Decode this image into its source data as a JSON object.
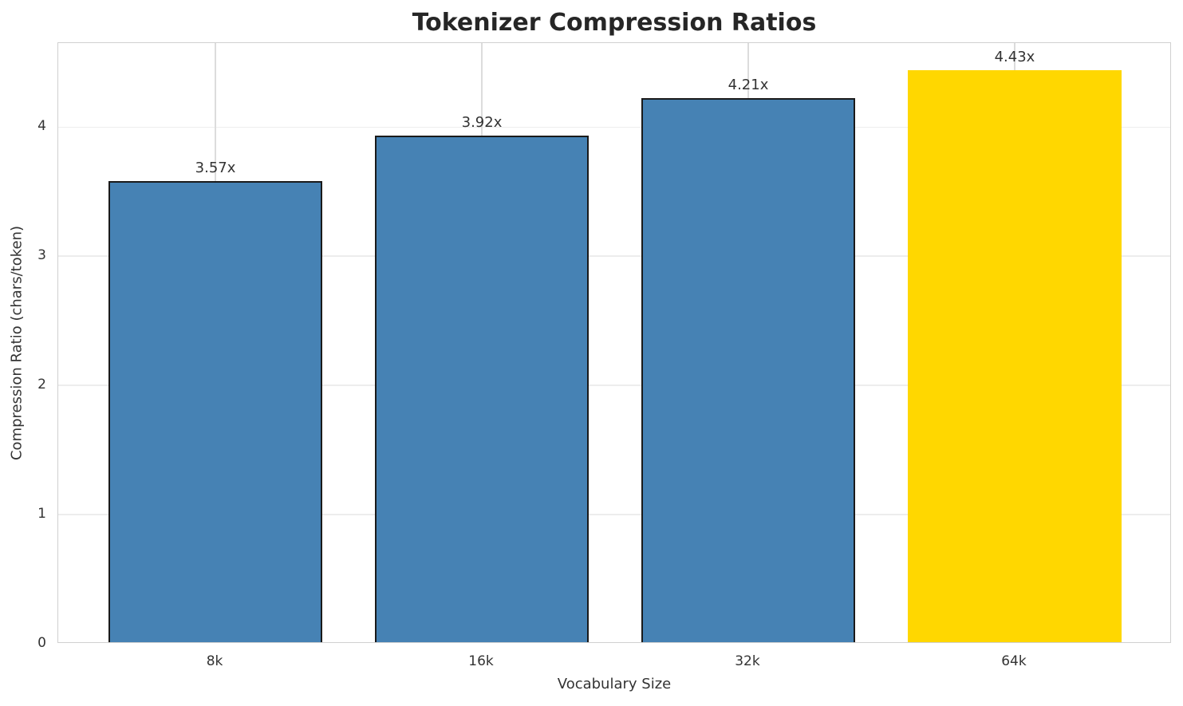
{
  "chart_data": {
    "type": "bar",
    "title": "Tokenizer Compression Ratios",
    "xlabel": "Vocabulary Size",
    "ylabel": "Compression Ratio (chars/token)",
    "categories": [
      "8k",
      "16k",
      "32k",
      "64k"
    ],
    "values": [
      3.57,
      3.92,
      4.21,
      4.43
    ],
    "bar_labels": [
      "3.57x",
      "3.92x",
      "4.21x",
      "4.43x"
    ],
    "yticks": [
      "0",
      "1",
      "2",
      "3",
      "4"
    ],
    "ytick_values": [
      0,
      1,
      2,
      3,
      4
    ],
    "ylim": [
      0,
      4.65
    ],
    "grid": true,
    "legend": false,
    "highlight_index": 3,
    "colors": {
      "bar": "#4682B4",
      "highlight_bar": "#FFD700",
      "bar_edge": "#1a1a1a",
      "grid_h": "#ededed",
      "grid_v": "#dcdcdc",
      "spine": "#d0d0d0",
      "title_text": "#262626",
      "tick_text": "#333333"
    },
    "bar_colors": [
      "#4682B4",
      "#4682B4",
      "#4682B4",
      "#FFD700"
    ],
    "bar_edge_colors": [
      "#1a1a1a",
      "#1a1a1a",
      "#1a1a1a",
      "none"
    ]
  }
}
